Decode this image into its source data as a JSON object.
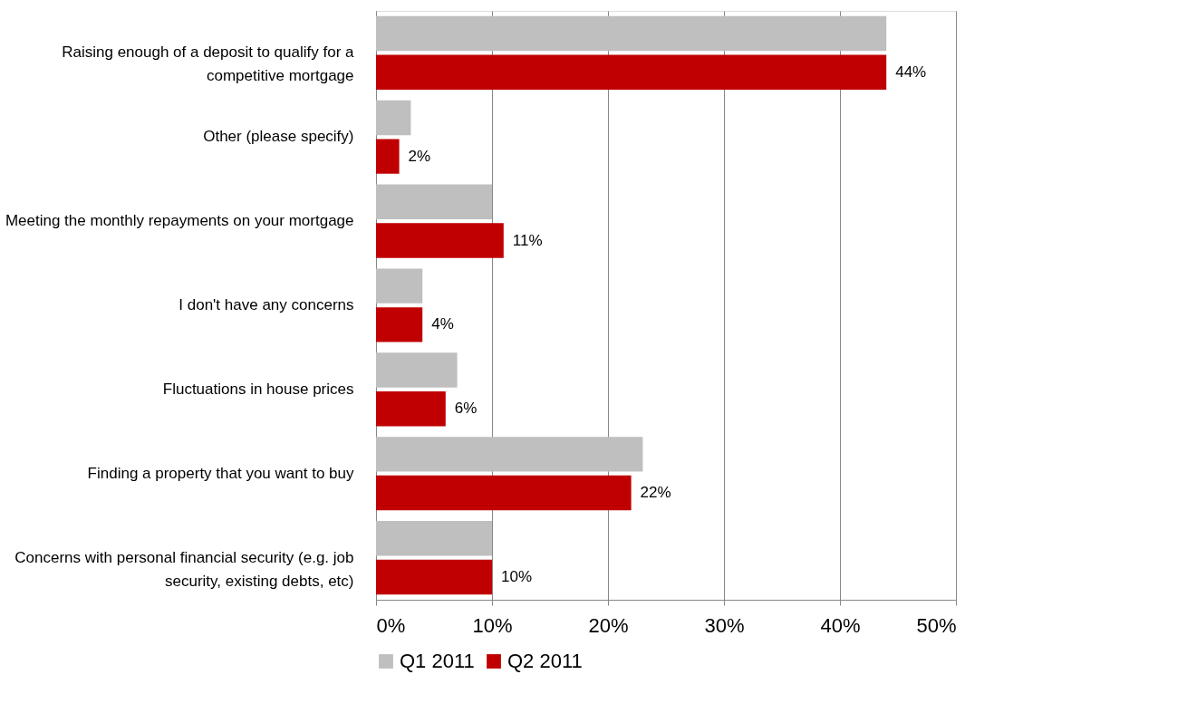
{
  "chart_data": {
    "type": "bar",
    "orientation": "horizontal",
    "categories": [
      "Raising enough of a deposit to qualify for a competitive mortgage",
      "Other (please specify)",
      "Meeting the monthly repayments on your mortgage",
      "I don't have any concerns",
      "Fluctuations in house prices",
      "Finding a property that you want to buy",
      "Concerns with personal financial security (e.g. job security, existing debts, etc)"
    ],
    "series": [
      {
        "name": "Q1 2011",
        "color": "#bfbfbf",
        "values": [
          44,
          3,
          10,
          4,
          7,
          23,
          10
        ]
      },
      {
        "name": "Q2 2011",
        "color": "#c00000",
        "values": [
          44,
          2,
          11,
          4,
          6,
          22,
          10
        ],
        "value_labels": [
          "44%",
          "2%",
          "11%",
          "4%",
          "6%",
          "22%",
          "10%"
        ]
      }
    ],
    "xlim": [
      0,
      50
    ],
    "xticks": [
      {
        "value": 0,
        "label": "0%"
      },
      {
        "value": 10,
        "label": "10%"
      },
      {
        "value": 20,
        "label": "20%"
      },
      {
        "value": 30,
        "label": "30%"
      },
      {
        "value": 40,
        "label": "40%"
      },
      {
        "value": 50,
        "label": "50%"
      }
    ],
    "grid": "x",
    "legend": "bottom"
  }
}
